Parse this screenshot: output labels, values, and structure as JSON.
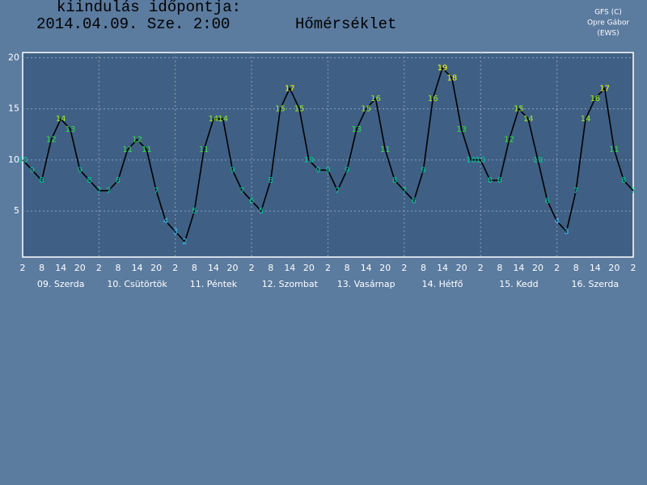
{
  "chart_data": {
    "type": "line",
    "header_line1": "kiindulás időpontja:",
    "header_line2": "2014.04.09. Sze. 2:00",
    "title": "Hőmérséklet",
    "credits": [
      "GFS (C)",
      "Opre Gábor",
      "(EWS)"
    ],
    "x": [
      2,
      5,
      8,
      11,
      14,
      17,
      20,
      23,
      26,
      29,
      32,
      35,
      38,
      41,
      44,
      47,
      50,
      53,
      56,
      59,
      62,
      65,
      68,
      71,
      74,
      77,
      80,
      83,
      86,
      89,
      92,
      95,
      98,
      101,
      104,
      107,
      110,
      113,
      116,
      119,
      122,
      125,
      128,
      131,
      134,
      137,
      140,
      143,
      146,
      149,
      152,
      155,
      158,
      161,
      164,
      167,
      170,
      173,
      176,
      179,
      182,
      185,
      188,
      191,
      194
    ],
    "series": [
      {
        "color": "#000000",
        "values": [
          10,
          9,
          8,
          12,
          14,
          13,
          9,
          8,
          7,
          7,
          8,
          11,
          12,
          11,
          7,
          4,
          3,
          2,
          5,
          11,
          14,
          14,
          9,
          7,
          6,
          5,
          8,
          15,
          17,
          15,
          10,
          9,
          9,
          7,
          9,
          13,
          15,
          16,
          11,
          8,
          7,
          6,
          9,
          16,
          19,
          18,
          13,
          10,
          10,
          8,
          8,
          12,
          15,
          14,
          10,
          6,
          4,
          3,
          7,
          14,
          16,
          17,
          11,
          8,
          7
        ]
      }
    ],
    "label_colors": [
      {
        "min": 0,
        "color": "#33ccff"
      },
      {
        "min": 5,
        "color": "#00cc99"
      },
      {
        "min": 11,
        "color": "#33dd44"
      },
      {
        "min": 14,
        "color": "#99ee22"
      },
      {
        "min": 17,
        "color": "#ffff00"
      }
    ],
    "xlim": [
      2,
      194
    ],
    "xticks": [
      2,
      8,
      14,
      20,
      {
        "value": 26,
        "label": "2"
      },
      {
        "value": 32,
        "label": "8"
      },
      {
        "value": 38,
        "label": "14"
      },
      {
        "value": 44,
        "label": "20"
      },
      {
        "value": 50,
        "label": "2"
      },
      {
        "value": 56,
        "label": "8"
      },
      {
        "value": 62,
        "label": "14"
      },
      {
        "value": 68,
        "label": "20"
      },
      {
        "value": 74,
        "label": "2"
      },
      {
        "value": 80,
        "label": "8"
      },
      {
        "value": 86,
        "label": "14"
      },
      {
        "value": 92,
        "label": "20"
      },
      {
        "value": 98,
        "label": "2"
      },
      {
        "value": 104,
        "label": "8"
      },
      {
        "value": 110,
        "label": "14"
      },
      {
        "value": 116,
        "label": "20"
      },
      {
        "value": 122,
        "label": "2"
      },
      {
        "value": 128,
        "label": "8"
      },
      {
        "value": 134,
        "label": "14"
      },
      {
        "value": 140,
        "label": "20"
      },
      {
        "value": 146,
        "label": "2"
      },
      {
        "value": 152,
        "label": "8"
      },
      {
        "value": 158,
        "label": "14"
      },
      {
        "value": 164,
        "label": "20"
      },
      {
        "value": 170,
        "label": "2"
      },
      {
        "value": 176,
        "label": "8"
      },
      {
        "value": 182,
        "label": "14"
      },
      {
        "value": 188,
        "label": "20"
      },
      {
        "value": 194,
        "label": "2"
      }
    ],
    "days": [
      "09. Szerda",
      "10. Csütörtök",
      "11. Péntek",
      "12. Szombat",
      "13. Vasárnap",
      "14. Hétfő",
      "15. Kedd",
      "16. Szerda"
    ],
    "ylim": [
      0.5,
      20.5
    ],
    "yticks": [
      5,
      10,
      15,
      20
    ],
    "grid": true
  }
}
